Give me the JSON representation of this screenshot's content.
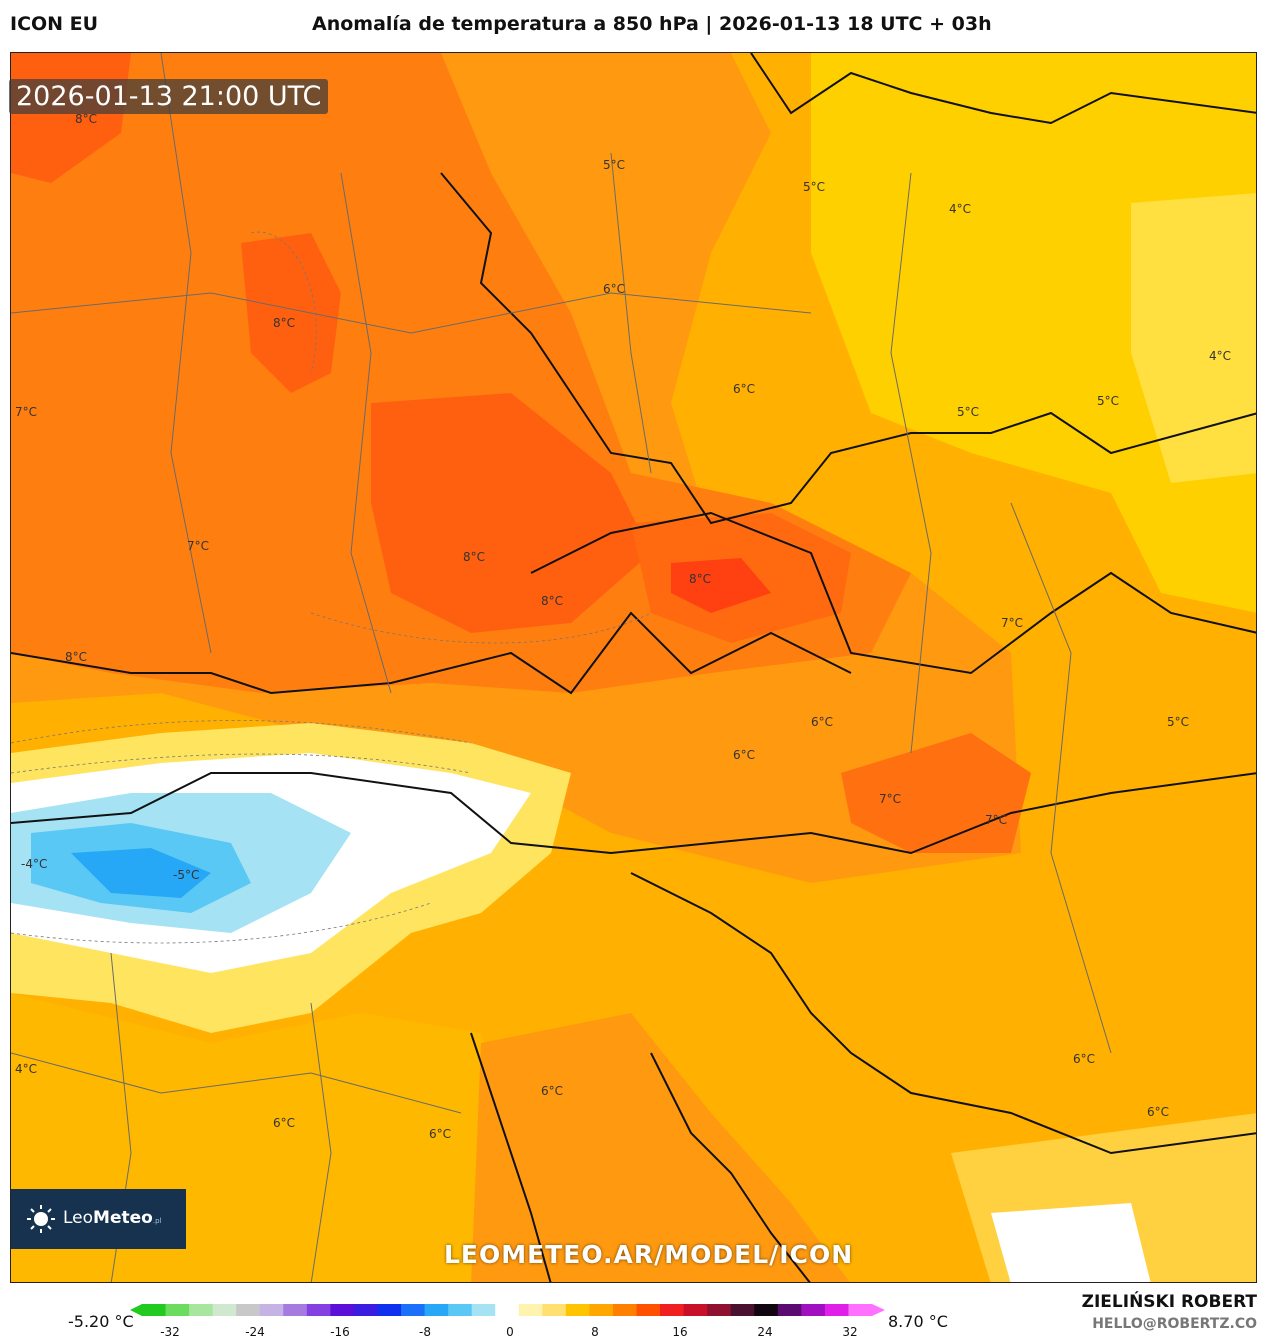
{
  "header": {
    "model": "ICON EU",
    "title": "Anomalía de temperatura a 850 hPa | 2026-01-13 18 UTC + 03h"
  },
  "map": {
    "valid_time": "2026-01-13 21:00 UTC",
    "contour_labels": [
      {
        "text": "8°C"
      },
      {
        "text": "5°C"
      },
      {
        "text": "5°C"
      },
      {
        "text": "4°C"
      },
      {
        "text": "6°C"
      },
      {
        "text": "8°C"
      },
      {
        "text": "4°C"
      },
      {
        "text": "7°C"
      },
      {
        "text": "6°C"
      },
      {
        "text": "5°C"
      },
      {
        "text": "5°C"
      },
      {
        "text": "7°C"
      },
      {
        "text": "8°C"
      },
      {
        "text": "8°C"
      },
      {
        "text": "8°C"
      },
      {
        "text": "7°C"
      },
      {
        "text": "8°C"
      },
      {
        "text": "6°C"
      },
      {
        "text": "5°C"
      },
      {
        "text": "6°C"
      },
      {
        "text": "7°C"
      },
      {
        "text": "7°C"
      },
      {
        "text": "-4°C"
      },
      {
        "text": "-5°C"
      },
      {
        "text": "6°C"
      },
      {
        "text": "6°C"
      },
      {
        "text": "4°C"
      },
      {
        "text": "6°C"
      },
      {
        "text": "6°C"
      },
      {
        "text": "6°C"
      }
    ]
  },
  "branding": {
    "logo_name": "Leo",
    "logo_name_bold": "Meteo",
    "logo_suffix": ".pl",
    "watermark": "LEOMETEO.AR/MODEL/ICON",
    "author": "ZIELIŃSKI ROBERT",
    "email": "HELLO@ROBERTZ.CO"
  },
  "scale": {
    "min_label": "-5.20 °C",
    "max_label": "8.70 °C",
    "ticks": [
      "-32",
      "-24",
      "-16",
      "-8",
      "0",
      "8",
      "16",
      "24",
      "32"
    ],
    "colors": [
      "#22c91f",
      "#6bdc5e",
      "#a8e6a0",
      "#cfe8cf",
      "#c8c8c8",
      "#c6b3e6",
      "#a57be0",
      "#8440e0",
      "#5b10d8",
      "#3a1de0",
      "#1030f0",
      "#1a70f8",
      "#26a8f6",
      "#5ac8f4",
      "#a4e2f4",
      "#ffffff",
      "#fff3b0",
      "#ffe070",
      "#ffc400",
      "#ffa600",
      "#ff8000",
      "#ff5000",
      "#f02020",
      "#c81028",
      "#901030",
      "#4a1030",
      "#100510",
      "#5a0a70",
      "#a010c0",
      "#e020e8",
      "#ff70ff"
    ]
  }
}
